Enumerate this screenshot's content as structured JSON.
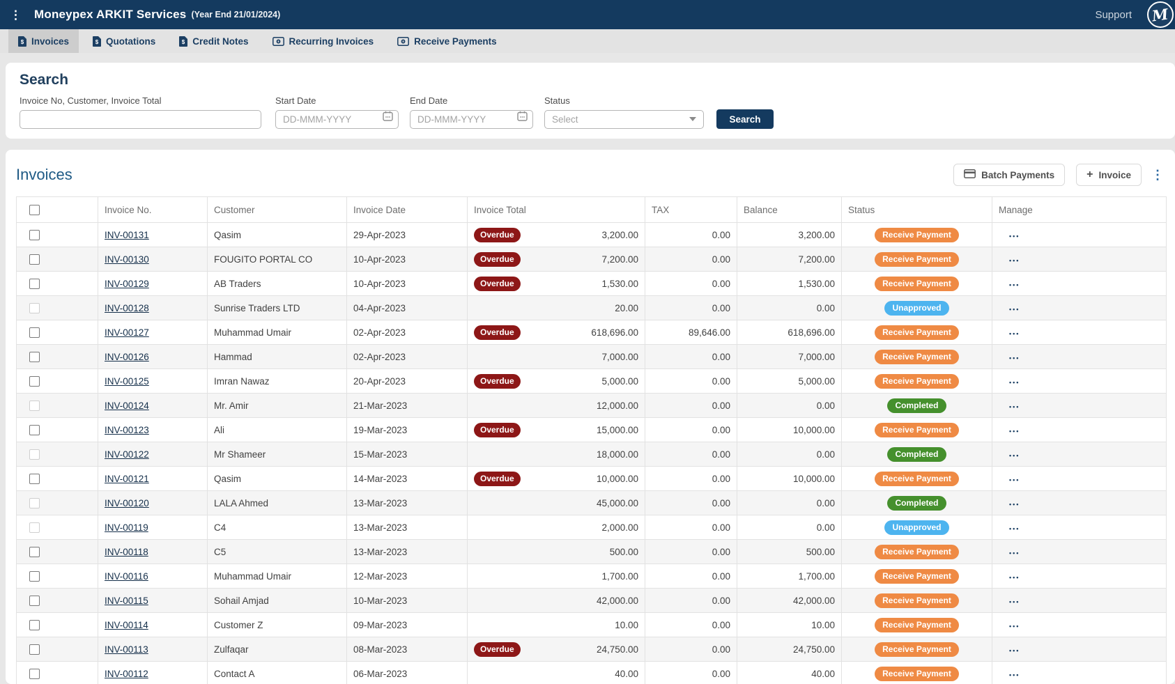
{
  "header": {
    "title": "Moneypex ARKIT Services",
    "year_end": "(Year End 21/01/2024)",
    "support_label": "Support",
    "logo_text": "M"
  },
  "tabs": [
    {
      "label": "Invoices",
      "icon": "invoice-file-icon",
      "active": true
    },
    {
      "label": "Quotations",
      "icon": "invoice-file-icon",
      "active": false
    },
    {
      "label": "Credit Notes",
      "icon": "invoice-file-icon",
      "active": false
    },
    {
      "label": "Recurring Invoices",
      "icon": "banknote-icon",
      "active": false
    },
    {
      "label": "Receive Payments",
      "icon": "banknote-icon",
      "active": false
    }
  ],
  "search": {
    "heading": "Search",
    "keyword_label": "Invoice No, Customer, Invoice Total",
    "keyword_value": "",
    "start_date_label": "Start Date",
    "start_date_placeholder": "DD-MMM-YYYY",
    "end_date_label": "End Date",
    "end_date_placeholder": "DD-MMM-YYYY",
    "status_label": "Status",
    "status_value": "Select",
    "search_button": "Search"
  },
  "invoices_section": {
    "heading": "Invoices",
    "batch_payments_button": "Batch Payments",
    "new_invoice_button": "Invoice",
    "plus_glyph": "+",
    "kebab_glyph": "⋮",
    "row_actions_glyph": "•••"
  },
  "table": {
    "columns": [
      "",
      "Invoice No.",
      "Customer",
      "Invoice Date",
      "Invoice Total",
      "TAX",
      "Balance",
      "Status",
      "Manage"
    ],
    "overdue_label": "Overdue",
    "rows": [
      {
        "invoice_no": "INV-00131",
        "customer": "Qasim",
        "date": "29-Apr-2023",
        "overdue": true,
        "total": "3,200.00",
        "tax": "0.00",
        "balance": "3,200.00",
        "status": "Receive Payment",
        "status_type": "receive",
        "checkbox_disabled": false
      },
      {
        "invoice_no": "INV-00130",
        "customer": "FOUGITO PORTAL CO",
        "date": "10-Apr-2023",
        "overdue": true,
        "total": "7,200.00",
        "tax": "0.00",
        "balance": "7,200.00",
        "status": "Receive Payment",
        "status_type": "receive",
        "checkbox_disabled": false
      },
      {
        "invoice_no": "INV-00129",
        "customer": "AB Traders",
        "date": "10-Apr-2023",
        "overdue": true,
        "total": "1,530.00",
        "tax": "0.00",
        "balance": "1,530.00",
        "status": "Receive Payment",
        "status_type": "receive",
        "checkbox_disabled": false
      },
      {
        "invoice_no": "INV-00128",
        "customer": "Sunrise Traders LTD",
        "date": "04-Apr-2023",
        "overdue": false,
        "total": "20.00",
        "tax": "0.00",
        "balance": "0.00",
        "status": "Unapproved",
        "status_type": "unapproved",
        "checkbox_disabled": true
      },
      {
        "invoice_no": "INV-00127",
        "customer": "Muhammad Umair",
        "date": "02-Apr-2023",
        "overdue": true,
        "total": "618,696.00",
        "tax": "89,646.00",
        "balance": "618,696.00",
        "status": "Receive Payment",
        "status_type": "receive",
        "checkbox_disabled": false
      },
      {
        "invoice_no": "INV-00126",
        "customer": "Hammad",
        "date": "02-Apr-2023",
        "overdue": false,
        "total": "7,000.00",
        "tax": "0.00",
        "balance": "7,000.00",
        "status": "Receive Payment",
        "status_type": "receive",
        "checkbox_disabled": false
      },
      {
        "invoice_no": "INV-00125",
        "customer": "Imran Nawaz",
        "date": "20-Apr-2023",
        "overdue": true,
        "total": "5,000.00",
        "tax": "0.00",
        "balance": "5,000.00",
        "status": "Receive Payment",
        "status_type": "receive",
        "checkbox_disabled": false
      },
      {
        "invoice_no": "INV-00124",
        "customer": "Mr. Amir",
        "date": "21-Mar-2023",
        "overdue": false,
        "total": "12,000.00",
        "tax": "0.00",
        "balance": "0.00",
        "status": "Completed",
        "status_type": "completed",
        "checkbox_disabled": true
      },
      {
        "invoice_no": "INV-00123",
        "customer": "Ali",
        "date": "19-Mar-2023",
        "overdue": true,
        "total": "15,000.00",
        "tax": "0.00",
        "balance": "10,000.00",
        "status": "Receive Payment",
        "status_type": "receive",
        "checkbox_disabled": false
      },
      {
        "invoice_no": "INV-00122",
        "customer": "Mr Shameer",
        "date": "15-Mar-2023",
        "overdue": false,
        "total": "18,000.00",
        "tax": "0.00",
        "balance": "0.00",
        "status": "Completed",
        "status_type": "completed",
        "checkbox_disabled": true
      },
      {
        "invoice_no": "INV-00121",
        "customer": "Qasim",
        "date": "14-Mar-2023",
        "overdue": true,
        "total": "10,000.00",
        "tax": "0.00",
        "balance": "10,000.00",
        "status": "Receive Payment",
        "status_type": "receive",
        "checkbox_disabled": false
      },
      {
        "invoice_no": "INV-00120",
        "customer": "LALA Ahmed",
        "date": "13-Mar-2023",
        "overdue": false,
        "total": "45,000.00",
        "tax": "0.00",
        "balance": "0.00",
        "status": "Completed",
        "status_type": "completed",
        "checkbox_disabled": true
      },
      {
        "invoice_no": "INV-00119",
        "customer": "C4",
        "date": "13-Mar-2023",
        "overdue": false,
        "total": "2,000.00",
        "tax": "0.00",
        "balance": "0.00",
        "status": "Unapproved",
        "status_type": "unapproved",
        "checkbox_disabled": true
      },
      {
        "invoice_no": "INV-00118",
        "customer": "C5",
        "date": "13-Mar-2023",
        "overdue": false,
        "total": "500.00",
        "tax": "0.00",
        "balance": "500.00",
        "status": "Receive Payment",
        "status_type": "receive",
        "checkbox_disabled": false
      },
      {
        "invoice_no": "INV-00116",
        "customer": "Muhammad Umair",
        "date": "12-Mar-2023",
        "overdue": false,
        "total": "1,700.00",
        "tax": "0.00",
        "balance": "1,700.00",
        "status": "Receive Payment",
        "status_type": "receive",
        "checkbox_disabled": false
      },
      {
        "invoice_no": "INV-00115",
        "customer": "Sohail Amjad",
        "date": "10-Mar-2023",
        "overdue": false,
        "total": "42,000.00",
        "tax": "0.00",
        "balance": "42,000.00",
        "status": "Receive Payment",
        "status_type": "receive",
        "checkbox_disabled": false
      },
      {
        "invoice_no": "INV-00114",
        "customer": "Customer Z",
        "date": "09-Mar-2023",
        "overdue": false,
        "total": "10.00",
        "tax": "0.00",
        "balance": "10.00",
        "status": "Receive Payment",
        "status_type": "receive",
        "checkbox_disabled": false
      },
      {
        "invoice_no": "INV-00113",
        "customer": "Zulfaqar",
        "date": "08-Mar-2023",
        "overdue": true,
        "total": "24,750.00",
        "tax": "0.00",
        "balance": "24,750.00",
        "status": "Receive Payment",
        "status_type": "receive",
        "checkbox_disabled": false
      },
      {
        "invoice_no": "INV-00112",
        "customer": "Contact A",
        "date": "06-Mar-2023",
        "overdue": false,
        "total": "40.00",
        "tax": "0.00",
        "balance": "40.00",
        "status": "Receive Payment",
        "status_type": "receive",
        "checkbox_disabled": false
      }
    ],
    "partial_row": true
  },
  "colors": {
    "navy": "#143a5f",
    "heading_blue": "#1f5a85",
    "link": "#152f4a",
    "overdue": "#8d1717",
    "receive": "#ef8a44",
    "unapproved": "#4db4ef",
    "completed": "#45902d"
  }
}
